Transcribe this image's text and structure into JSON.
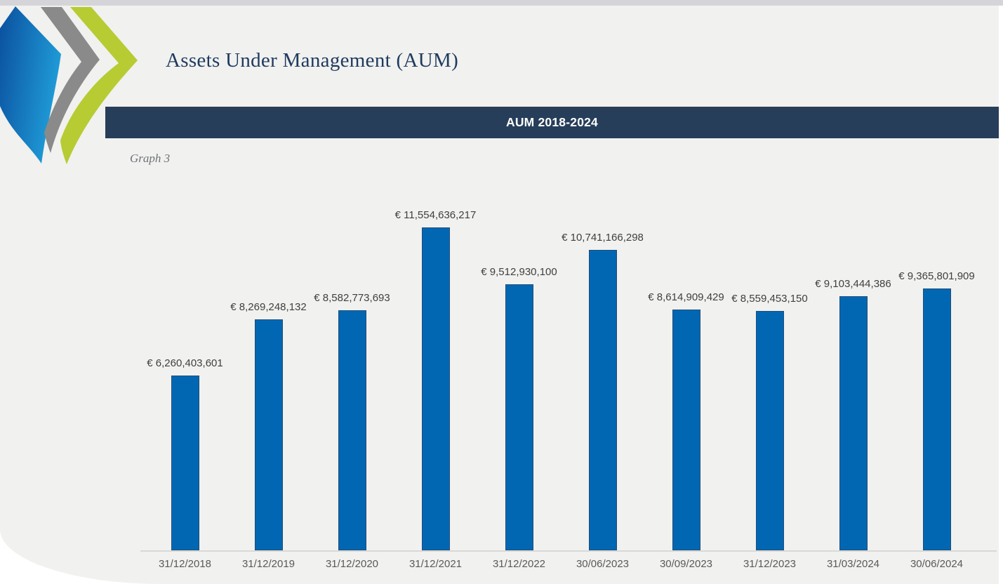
{
  "page": {
    "background": "#FFFFFF",
    "content_background": "#F1F1EF",
    "top_strip_color": "#D5D4D8"
  },
  "header": {
    "title": "Assets Under Management (AUM)",
    "title_color": "#1E3A5F",
    "logo": {
      "name": "chevrons-logo",
      "blue_dark": "#0A4C9B",
      "blue_light": "#1F9BD7",
      "gray": "#8A8A8A",
      "green": "#B7CB33"
    }
  },
  "banner": {
    "title": "AUM 2018-2024",
    "background": "#263E59",
    "text_color": "#FFFFFF"
  },
  "caption": {
    "text": "Graph 3"
  },
  "chart_data": {
    "type": "bar",
    "title": "AUM 2018-2024",
    "categories": [
      "31/12/2018",
      "31/12/2019",
      "31/12/2020",
      "31/12/2021",
      "31/12/2022",
      "30/06/2023",
      "30/09/2023",
      "31/12/2023",
      "31/03/2024",
      "30/06/2024"
    ],
    "values": [
      6260403601,
      8269248132,
      8582773693,
      11554636217,
      9512930100,
      10741166298,
      8614909429,
      8559453150,
      9103444386,
      9365801909
    ],
    "data_labels": [
      "€ 6,260,403,601",
      "€ 8,269,248,132",
      "€ 8,582,773,693",
      "€ 11,554,636,217",
      "€ 9,512,930,100",
      "€ 10,741,166,298",
      "€ 8,614,909,429",
      "€ 8,559,453,150",
      "€ 9,103,444,386",
      "€ 9,365,801,909"
    ],
    "currency": "EUR",
    "ylim": [
      0,
      11554636217
    ],
    "xlabel": "",
    "ylabel": "",
    "grid": false,
    "legend": false,
    "bar_color": "#0267B3",
    "bar_border_color": "#1F4E79",
    "data_label_color": "#3F3F3F",
    "tick_label_color": "#595959",
    "axis_line_color": "#D8D8D8"
  }
}
